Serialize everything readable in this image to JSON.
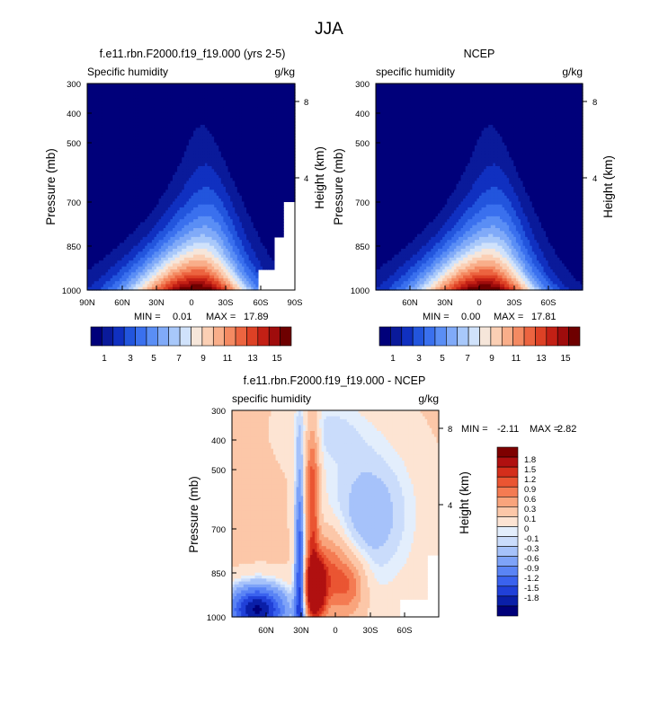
{
  "page": {
    "title": "JJA"
  },
  "colors": {
    "absolute": [
      "#00007a",
      "#0a1a9a",
      "#1030c0",
      "#2255dd",
      "#3a70ee",
      "#5a8ef5",
      "#80aaf8",
      "#a8c8fa",
      "#d0e2fb",
      "#f6e6da",
      "#fbcfb4",
      "#f9ae8a",
      "#f48a62",
      "#ec6440",
      "#dd4125",
      "#c32015",
      "#9f0c0c",
      "#6e0000"
    ],
    "difference": [
      "#00007a",
      "#0a1fa8",
      "#2040d8",
      "#3a62ee",
      "#5a84f5",
      "#7ea3f8",
      "#a6c2fa",
      "#cadcfb",
      "#e3eefc",
      "#fde4d3",
      "#fcc7a8",
      "#f9a47c",
      "#f47b52",
      "#ea5532",
      "#d42e1b",
      "#b01010",
      "#7e0000"
    ]
  },
  "panels": [
    {
      "id": "model",
      "title": "f.e11.rbn.F2000.f19_f19.000 (yrs 2-5)",
      "left_label": "Specific humidity",
      "right_label": "g/kg",
      "ylabel": "Pressure (mb)",
      "right_axis_label": "Height (km)",
      "y_ticks": [
        "300",
        "400",
        "500",
        "700",
        "850",
        "1000"
      ],
      "x_ticks": [
        "90N",
        "60N",
        "30N",
        "0",
        "30S",
        "60S",
        "90S"
      ],
      "height_ticks": [
        "8",
        "4"
      ],
      "stats": {
        "min_label": "MIN =",
        "min": "0.01",
        "max_label": "MAX =",
        "max": "17.89"
      },
      "colorbar_labels": [
        "1",
        "3",
        "5",
        "7",
        "9",
        "11",
        "13",
        "15"
      ]
    },
    {
      "id": "ncep",
      "title": "NCEP",
      "left_label": "specific humidity",
      "right_label": "g/kg",
      "ylabel": "Pressure (mb)",
      "right_axis_label": "Height (km)",
      "y_ticks": [
        "300",
        "400",
        "500",
        "700",
        "850",
        "1000"
      ],
      "x_ticks": [
        "60N",
        "30N",
        "0",
        "30S",
        "60S"
      ],
      "height_ticks": [
        "8",
        "4"
      ],
      "stats": {
        "min_label": "MIN =",
        "min": "0.00",
        "max_label": "MAX =",
        "max": "17.81"
      },
      "colorbar_labels": [
        "1",
        "3",
        "5",
        "7",
        "9",
        "11",
        "13",
        "15"
      ]
    },
    {
      "id": "diff",
      "title": "f.e11.rbn.F2000.f19_f19.000 - NCEP",
      "left_label": "specific humidity",
      "right_label": "g/kg",
      "ylabel": "Pressure (mb)",
      "right_axis_label": "Height (km)",
      "y_ticks": [
        "300",
        "400",
        "500",
        "700",
        "850",
        "1000"
      ],
      "x_ticks": [
        "60N",
        "30N",
        "0",
        "30S",
        "60S"
      ],
      "height_ticks": [
        "8",
        "4"
      ],
      "stats": {
        "min_label": "MIN =",
        "min": "-2.11",
        "max_label": "MAX =",
        "max": "2.82"
      },
      "colorbar_labels": [
        "1.8",
        "1.5",
        "1.2",
        "0.9",
        "0.6",
        "0.3",
        "0.1",
        "0",
        "-0.1",
        "-0.3",
        "-0.6",
        "-0.9",
        "-1.2",
        "-1.5",
        "-1.8"
      ]
    }
  ],
  "chart_data": [
    {
      "type": "heatmap",
      "title": "f.e11.rbn.F2000.f19_f19.000 (yrs 2-5)",
      "xlabel": "",
      "ylabel": "Pressure (mb)",
      "units": "g/kg",
      "x_ticks": [
        "90N",
        "60N",
        "30N",
        "0",
        "30S",
        "60S",
        "90S"
      ],
      "x_range": [
        90,
        -90
      ],
      "y_ticks": [
        300,
        400,
        500,
        700,
        850,
        1000
      ],
      "y_range": [
        300,
        1000
      ],
      "y_scale": "log",
      "min": 0.01,
      "max": 17.89,
      "levels": [
        1,
        2,
        3,
        4,
        5,
        6,
        7,
        8,
        9,
        10,
        11,
        12,
        13,
        14,
        15,
        16,
        17
      ],
      "peak_latitude": -8,
      "peak_pressure": 1000,
      "peak_value": 17.89
    },
    {
      "type": "heatmap",
      "title": "NCEP",
      "xlabel": "",
      "ylabel": "Pressure (mb)",
      "units": "g/kg",
      "x_ticks": [
        "60N",
        "30N",
        "0",
        "30S",
        "60S"
      ],
      "x_range": [
        90,
        -90
      ],
      "y_ticks": [
        300,
        400,
        500,
        700,
        850,
        1000
      ],
      "y_range": [
        300,
        1000
      ],
      "y_scale": "log",
      "min": 0.0,
      "max": 17.81,
      "levels": [
        1,
        2,
        3,
        4,
        5,
        6,
        7,
        8,
        9,
        10,
        11,
        12,
        13,
        14,
        15,
        16,
        17
      ],
      "peak_latitude": -8,
      "peak_pressure": 1000,
      "peak_value": 17.81
    },
    {
      "type": "heatmap",
      "title": "f.e11.rbn.F2000.f19_f19.000 - NCEP",
      "xlabel": "",
      "ylabel": "Pressure (mb)",
      "units": "g/kg",
      "x_ticks": [
        "60N",
        "30N",
        "0",
        "30S",
        "60S"
      ],
      "x_range": [
        90,
        -90
      ],
      "y_ticks": [
        300,
        400,
        500,
        700,
        850,
        1000
      ],
      "y_range": [
        300,
        1000
      ],
      "y_scale": "log",
      "min": -2.11,
      "max": 2.82,
      "levels": [
        -1.8,
        -1.5,
        -1.2,
        -0.9,
        -0.6,
        -0.3,
        -0.1,
        0,
        0.1,
        0.3,
        0.6,
        0.9,
        1.2,
        1.5,
        1.8
      ],
      "features": [
        {
          "kind": "positive_max",
          "latitude": 18,
          "pressure": 850,
          "value": 2.82
        },
        {
          "kind": "negative_min",
          "latitude": 30,
          "pressure": 1000,
          "value": -2.11
        }
      ]
    }
  ]
}
